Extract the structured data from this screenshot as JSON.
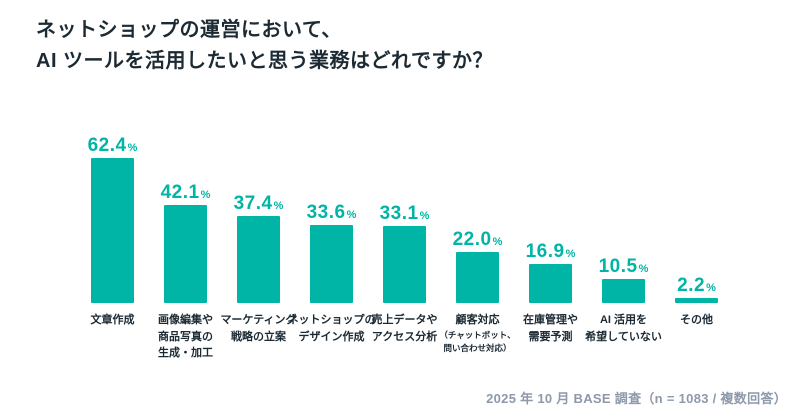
{
  "title": {
    "line1": "ネットショップの運営において、",
    "line2": "AI ツールを活用したいと思う業務はどれですか？"
  },
  "footer": {
    "text": "2025 年 10 月 BASE 調査（n = 1083 / 複数回答）"
  },
  "colors": {
    "bar": "#00b5a5",
    "value_label": "#00b5a5",
    "title_text": "#1c2a33",
    "category_text": "#1c2a33",
    "footer_text": "#8e99aa",
    "background": "#ffffff"
  },
  "chart_data": {
    "type": "bar",
    "title": "ネットショップの運営において、AI ツールを活用したいと思う業務はどれですか？",
    "unit": "%",
    "xlabel": "",
    "ylabel": "",
    "ylim": [
      0,
      70
    ],
    "grid": false,
    "legend": "none",
    "axes_visible": false,
    "source_note": "2025 年 10 月 BASE 調査（n = 1083 / 複数回答）",
    "values": [
      62.4,
      42.1,
      37.4,
      33.6,
      33.1,
      22.0,
      16.9,
      10.5,
      2.2
    ],
    "value_labels": [
      "62.4",
      "42.1",
      "37.4",
      "33.6",
      "33.1",
      "22.0",
      "16.9",
      "10.5",
      "2.2"
    ],
    "percent_sign": "%",
    "categories": [
      {
        "lines": [
          "文章作成"
        ],
        "note_lines": []
      },
      {
        "lines": [
          "画像編集や",
          "商品写真の",
          "生成・加工"
        ],
        "note_lines": []
      },
      {
        "lines": [
          "マーケティング",
          "戦略の立案"
        ],
        "note_lines": []
      },
      {
        "lines": [
          "ネットショップの",
          "デザイン作成"
        ],
        "note_lines": []
      },
      {
        "lines": [
          "売上データや",
          "アクセス分析"
        ],
        "note_lines": []
      },
      {
        "lines": [
          "顧客対応"
        ],
        "note_lines": [
          "（チャットボット、",
          "問い合わせ対応）"
        ]
      },
      {
        "lines": [
          "在庫管理や",
          "需要予測"
        ],
        "note_lines": []
      },
      {
        "lines": [
          "AI 活用を",
          "希望していない"
        ],
        "note_lines": []
      },
      {
        "lines": [
          "その他"
        ],
        "note_lines": []
      }
    ]
  }
}
